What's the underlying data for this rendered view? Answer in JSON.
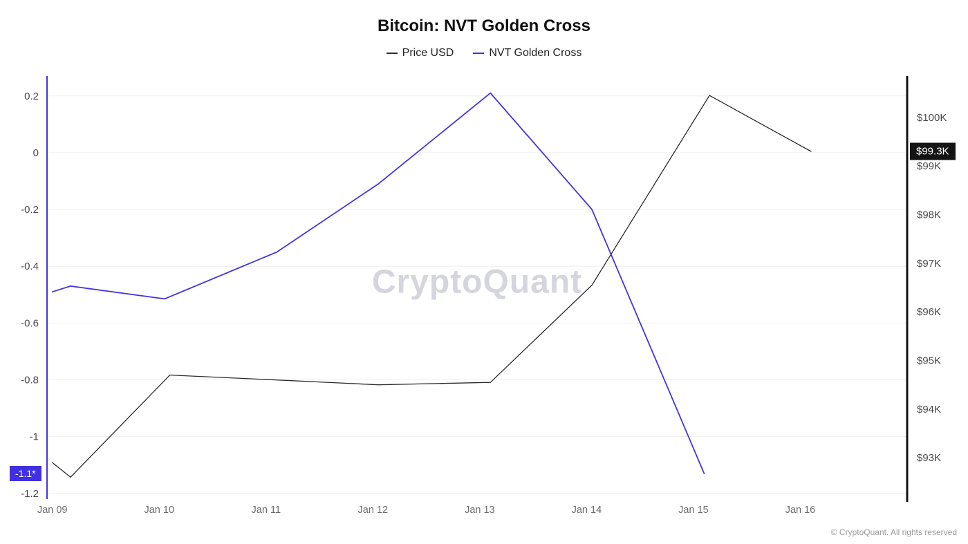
{
  "page": {
    "watermark": "CryptoQuant",
    "footer": "© CryptoQuant. All rights reserved"
  },
  "chart_data": {
    "type": "line",
    "title": "Bitcoin: NVT Golden Cross",
    "x_axis": {
      "tick_values": [
        0,
        1,
        2,
        3,
        4,
        5,
        6,
        7
      ],
      "tick_labels": [
        "Jan 09",
        "Jan 10",
        "Jan 11",
        "Jan 12",
        "Jan 13",
        "Jan 14",
        "Jan 15",
        "Jan 16"
      ],
      "range": [
        -0.05,
        8.0
      ]
    },
    "left_axis": {
      "tick_values": [
        0.2,
        0,
        -0.2,
        -0.4,
        -0.6,
        -0.8,
        -1,
        -1.2
      ],
      "tick_labels": [
        "0.2",
        "0",
        "-0.2",
        "-0.4",
        "-0.6",
        "-0.8",
        "-1",
        "-1.2"
      ],
      "range": [
        -1.22,
        0.27
      ],
      "axis_color": "#4433e0",
      "current_value": -1.13,
      "current_label": "-1.1*",
      "badge_color": "#4130e2"
    },
    "right_axis": {
      "tick_values": [
        100,
        99,
        98,
        97,
        96,
        95,
        94,
        93
      ],
      "tick_labels": [
        "$100K",
        "$99K",
        "$98K",
        "$97K",
        "$96K",
        "$95K",
        "$94K",
        "$93K"
      ],
      "range": [
        92.15,
        100.85
      ],
      "axis_color": "#111111",
      "current_value": 99.3,
      "current_label": "$99.3K",
      "badge_color": "#141414"
    },
    "gridlines": {
      "color": "#efefef",
      "at": "left_ticks"
    },
    "series": [
      {
        "name": "Price USD",
        "axis": "right",
        "color": "#2b2b2b",
        "width": 1.3,
        "x": [
          0,
          0.17,
          1.1,
          2.1,
          3.05,
          4.1,
          5.05,
          6.15,
          7.1
        ],
        "y": [
          92.9,
          92.6,
          94.7,
          94.6,
          94.5,
          94.55,
          96.55,
          100.45,
          99.3
        ]
      },
      {
        "name": "NVT Golden Cross",
        "axis": "left",
        "color": "#4433e0",
        "width": 1.8,
        "x": [
          0,
          0.17,
          1.05,
          2.1,
          3.05,
          4.1,
          5.05,
          6.1
        ],
        "y": [
          -0.49,
          -0.47,
          -0.515,
          -0.35,
          -0.11,
          0.21,
          -0.2,
          -1.13
        ]
      }
    ]
  }
}
